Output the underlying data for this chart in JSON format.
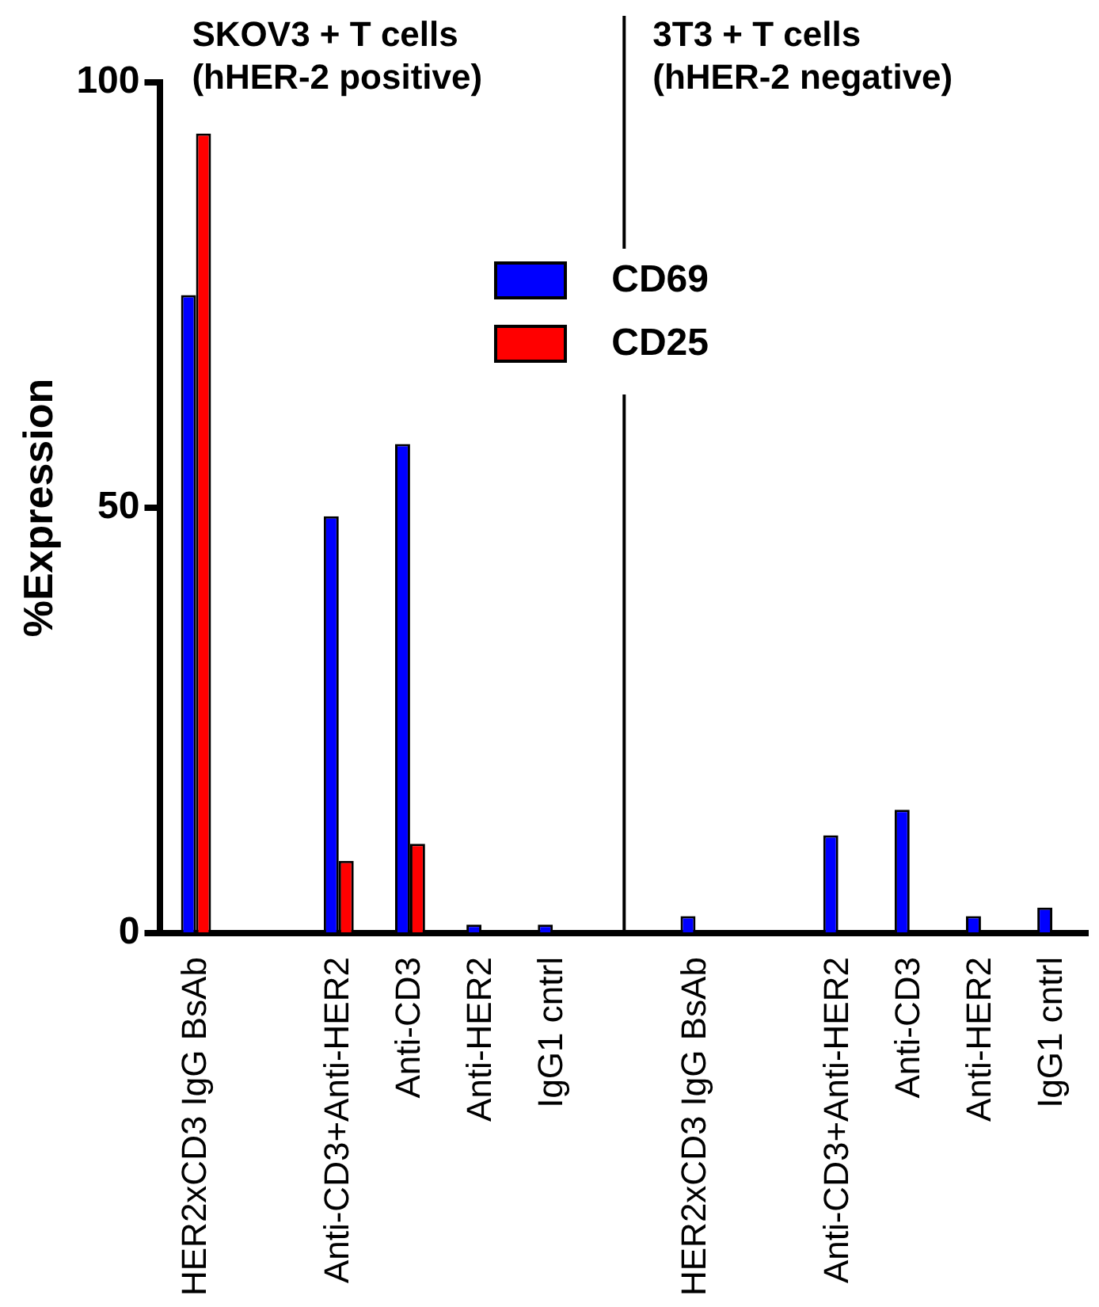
{
  "chart_data": {
    "type": "bar",
    "ylabel": "%Expression",
    "categories": [
      "HER2xCD3 IgG BsAb",
      null,
      "Anti-CD3+Anti-HER2",
      "Anti-CD3",
      "Anti-HER2",
      "IgG1 cntrl",
      null,
      "HER2xCD3 IgG BsAb",
      null,
      "Anti-CD3+Anti-HER2",
      "Anti-CD3",
      "Anti-HER2",
      "IgG1 cntrl"
    ],
    "series": [
      {
        "name": "CD69",
        "color": "#0000ff",
        "values": [
          75,
          null,
          49,
          57.5,
          1,
          1,
          null,
          2,
          null,
          11.5,
          14.5,
          2,
          3
        ]
      },
      {
        "name": "CD25",
        "color": "#ff0000",
        "values": [
          94,
          null,
          8.5,
          10.5,
          0,
          0,
          null,
          0,
          null,
          0,
          0,
          0,
          0
        ]
      }
    ],
    "ref_lines": [
      {
        "axis": "x"
      }
    ],
    "ylim": [
      0,
      100
    ],
    "yticks": [
      0,
      50,
      100
    ],
    "legend": "top",
    "annotations": [
      "SKOV3 + T cells\n(hHER-2 positive)",
      "3T3 + T cells\n(hHER-2 negative)"
    ]
  }
}
